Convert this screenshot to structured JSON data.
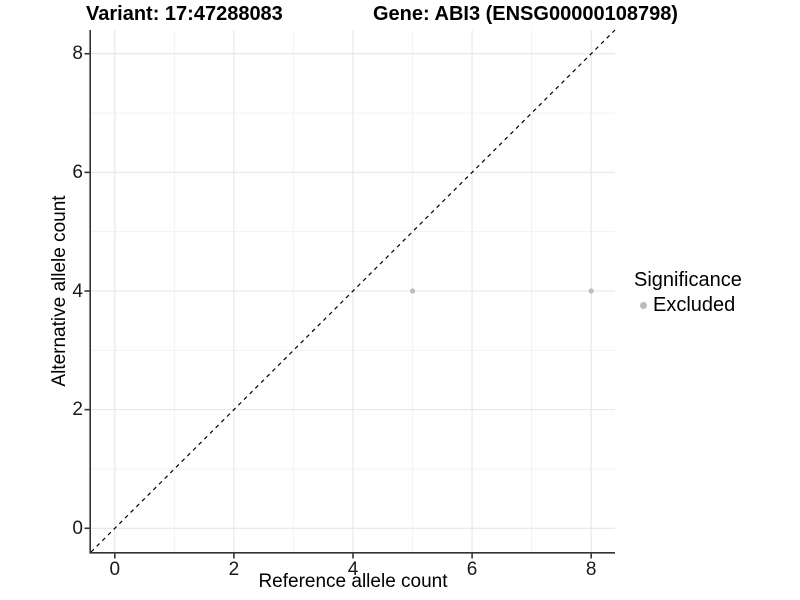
{
  "chart_data": {
    "type": "scatter",
    "title_left": "Variant: 17:47288083",
    "title_right": "Gene: ABI3 (ENSG00000108798)",
    "xlabel": "Reference allele count",
    "ylabel": "Alternative allele count",
    "xlim": [
      -0.4,
      8.4
    ],
    "ylim": [
      -0.4,
      8.4
    ],
    "x_ticks": [
      0,
      2,
      4,
      6,
      8
    ],
    "y_ticks": [
      0,
      2,
      4,
      6,
      8
    ],
    "x_minor_ticks": [
      1,
      3,
      5,
      7
    ],
    "y_minor_ticks": [
      1,
      3,
      5,
      7
    ],
    "grid": true,
    "identity_line": {
      "equation": "y = x",
      "style": "dashed",
      "color": "#000000"
    },
    "series": [
      {
        "name": "Excluded",
        "color": "#bcbcbc",
        "points": [
          {
            "x": 5,
            "y": 4
          },
          {
            "x": 8,
            "y": 4
          }
        ]
      }
    ],
    "legend": {
      "title": "Significance",
      "position": "right",
      "items": [
        {
          "label": "Excluded",
          "color": "#bcbcbc"
        }
      ]
    },
    "colors": {
      "grid_major": "#e6e6e6",
      "grid_minor": "#f3f3f3",
      "axis": "#333333",
      "text": "#000000",
      "point": "#bcbcbc"
    }
  }
}
